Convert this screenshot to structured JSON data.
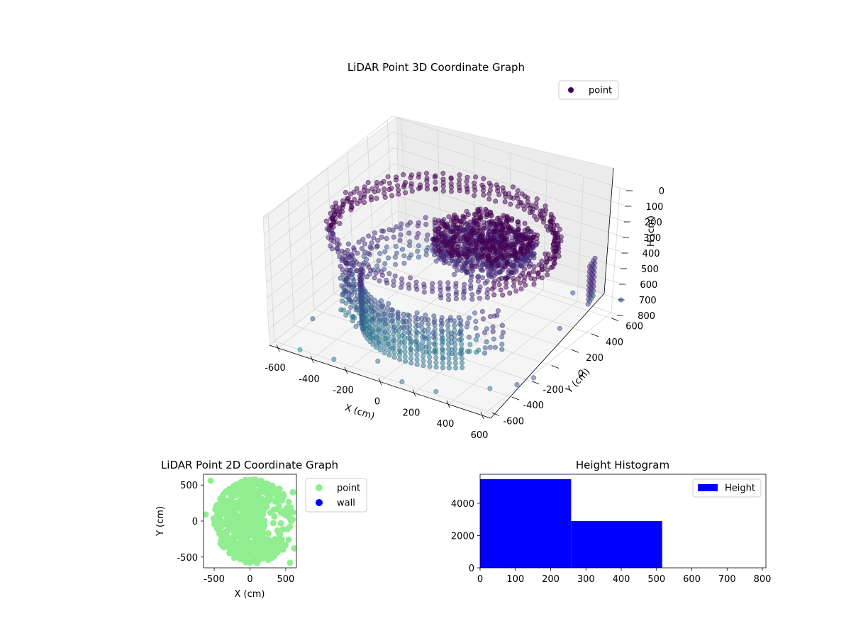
{
  "chart_data": [
    {
      "type": "scatter",
      "title": "LiDAR Point 3D Coordinate Graph",
      "projection": "3d",
      "xlabel": "X (cm)",
      "ylabel": "Y (cm)",
      "zlabel": "H (cm)",
      "xlim": [
        -650,
        650
      ],
      "ylim": [
        -650,
        650
      ],
      "zlim": [
        800,
        0
      ],
      "z_axis_inverted": true,
      "xticks": [
        "-600",
        "-400",
        "-200",
        "0",
        "200",
        "400",
        "600"
      ],
      "yticks": [
        "-600",
        "-400",
        "-200",
        "0",
        "200",
        "400",
        "600"
      ],
      "zticks": [
        "0",
        "100",
        "200",
        "300",
        "400",
        "500",
        "600",
        "700",
        "800"
      ],
      "grid": true,
      "legend": {
        "placement": "upper right",
        "entries": [
          "point"
        ]
      },
      "series": [
        {
          "name": "point",
          "color": "#440154",
          "colormap": "viridis",
          "description_of_clusters": [
            {
              "shape": "ring",
              "radius": 560,
              "h_min": 150,
              "h_max": 250
            },
            {
              "shape": "dense_core",
              "center": [
                150,
                150
              ],
              "radius": 250,
              "h_min": 200,
              "h_max": 350
            },
            {
              "shape": "partial_ring",
              "radius": 500,
              "h_min": 400,
              "h_max": 700
            },
            {
              "shape": "vertical_columns",
              "h_min": 450,
              "h_max": 800
            },
            {
              "shape": "outliers",
              "h_min": 700,
              "h_max": 800
            }
          ]
        }
      ]
    },
    {
      "type": "scatter",
      "title": "LiDAR Point 2D Coordinate Graph",
      "xlabel": "X (cm)",
      "ylabel": "Y (cm)",
      "xlim": [
        -650,
        650
      ],
      "ylim": [
        -650,
        650
      ],
      "xticks": [
        "-500",
        "0",
        "500"
      ],
      "yticks": [
        "-500",
        "0",
        "500"
      ],
      "legend": {
        "placement": "outside right",
        "entries": [
          "point",
          "wall"
        ]
      },
      "series": [
        {
          "name": "point",
          "color": "#90ee90"
        },
        {
          "name": "wall",
          "color": "#0000ff"
        }
      ]
    },
    {
      "type": "bar",
      "title": "Height Histogram",
      "xlim": [
        0,
        810
      ],
      "ylim": [
        0,
        5800
      ],
      "xticks": [
        "0",
        "100",
        "200",
        "300",
        "400",
        "500",
        "600",
        "700",
        "800"
      ],
      "yticks": [
        "0",
        "2000",
        "4000"
      ],
      "legend": {
        "placement": "upper right",
        "entries": [
          "Height"
        ]
      },
      "series": [
        {
          "name": "Height",
          "color": "#0000ff",
          "bins": [
            0,
            258,
            516,
            774
          ],
          "values": [
            5500,
            2900,
            0
          ]
        }
      ]
    }
  ]
}
